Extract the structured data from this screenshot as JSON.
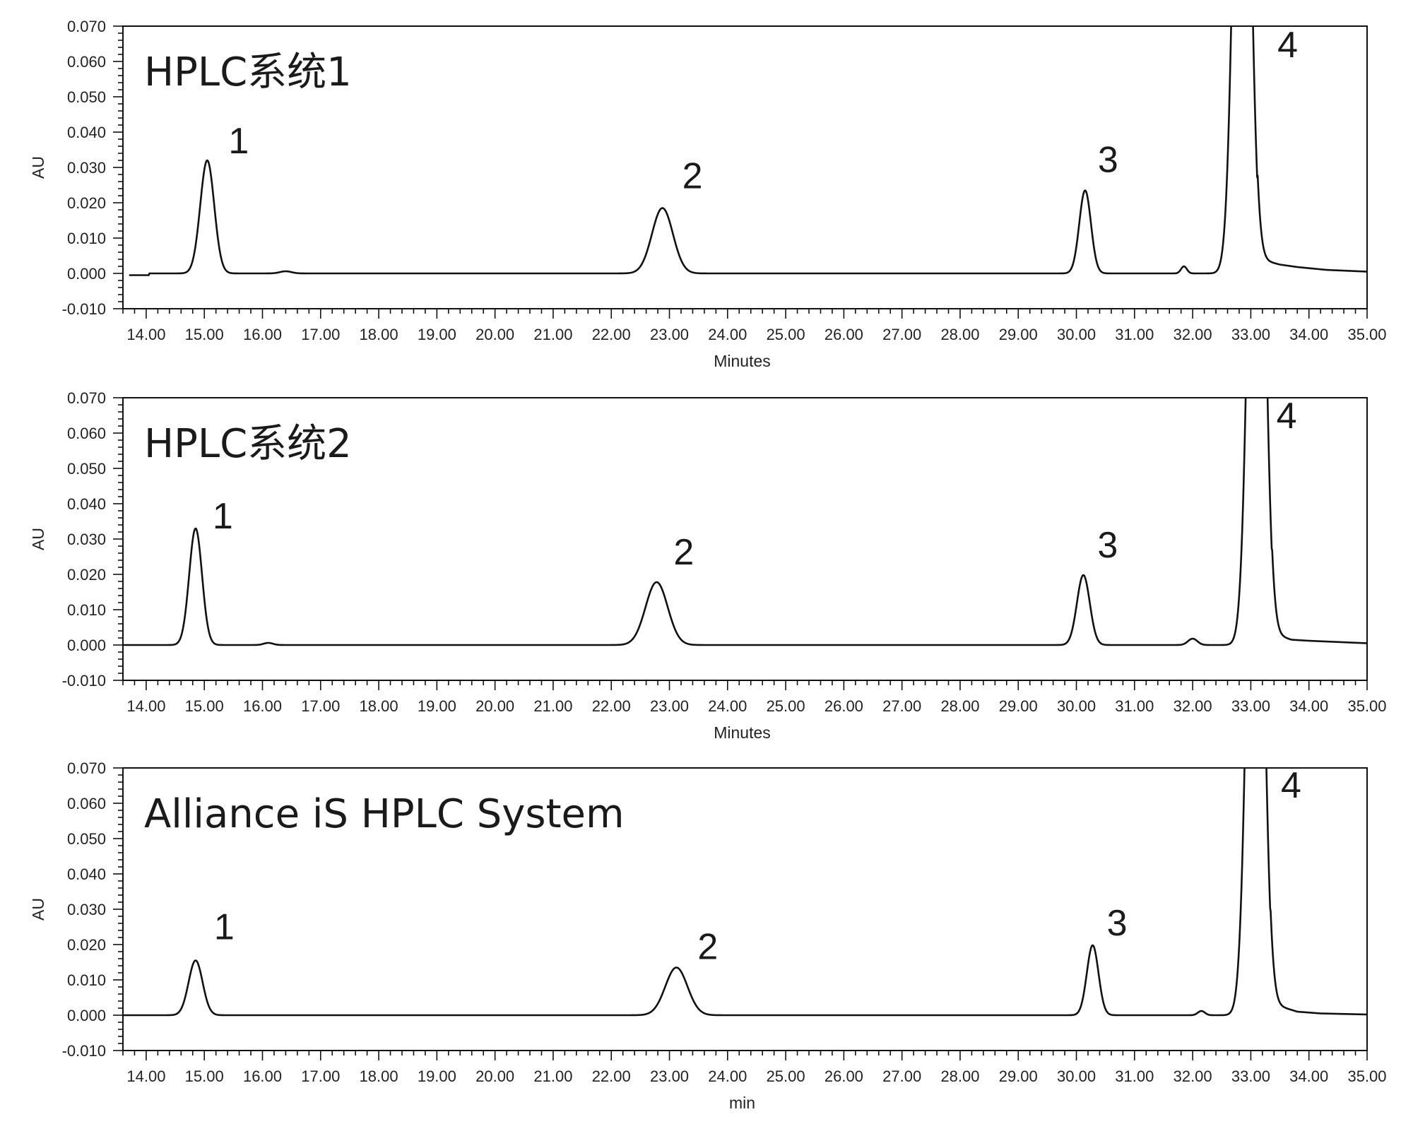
{
  "chart_data": [
    {
      "type": "line",
      "title": "HPLC系统1",
      "xlabel": "Minutes",
      "ylabel": "AU",
      "xlim": [
        13.6,
        35.0
      ],
      "ylim": [
        -0.01,
        0.07
      ],
      "xticks": [
        "14.00",
        "15.00",
        "16.00",
        "17.00",
        "18.00",
        "19.00",
        "20.00",
        "21.00",
        "22.00",
        "23.00",
        "24.00",
        "25.00",
        "26.00",
        "27.00",
        "28.00",
        "29.00",
        "30.00",
        "31.00",
        "32.00",
        "33.00",
        "34.00",
        "35.00"
      ],
      "yticks": [
        "-0.010",
        "0.000",
        "0.010",
        "0.020",
        "0.030",
        "0.040",
        "0.050",
        "0.060",
        "0.070"
      ],
      "grid": false,
      "baseline": 0.0,
      "pre_offset": -0.0005,
      "peaks": [
        {
          "label": "1",
          "rt": 15.05,
          "height": 0.032,
          "width": 0.12
        },
        {
          "rt": 16.4,
          "height": 0.0006,
          "width": 0.1
        },
        {
          "label": "2",
          "rt": 22.88,
          "height": 0.0185,
          "width": 0.18
        },
        {
          "label": "3",
          "rt": 30.15,
          "height": 0.0235,
          "width": 0.1
        },
        {
          "rt": 31.85,
          "height": 0.002,
          "width": 0.05
        },
        {
          "label": "4",
          "rt": 32.85,
          "height": 0.2,
          "width": 0.13
        }
      ],
      "tail": [
        {
          "x": 33.15,
          "y": 0.004
        },
        {
          "x": 33.5,
          "y": 0.0025
        },
        {
          "x": 33.8,
          "y": 0.0018
        },
        {
          "x": 34.3,
          "y": 0.001
        },
        {
          "x": 35.0,
          "y": 0.0005
        }
      ]
    },
    {
      "type": "line",
      "title": "HPLC系统2",
      "xlabel": "Minutes",
      "ylabel": "AU",
      "xlim": [
        13.6,
        35.0
      ],
      "ylim": [
        -0.01,
        0.07
      ],
      "xticks": [
        "14.00",
        "15.00",
        "16.00",
        "17.00",
        "18.00",
        "19.00",
        "20.00",
        "21.00",
        "22.00",
        "23.00",
        "24.00",
        "25.00",
        "26.00",
        "27.00",
        "28.00",
        "29.00",
        "30.00",
        "31.00",
        "32.00",
        "33.00",
        "34.00",
        "35.00"
      ],
      "yticks": [
        "-0.010",
        "0.000",
        "0.010",
        "0.020",
        "0.030",
        "0.040",
        "0.050",
        "0.060",
        "0.070"
      ],
      "grid": false,
      "baseline": 0.0,
      "pre_offset": 0.0,
      "peaks": [
        {
          "label": "1",
          "rt": 14.85,
          "height": 0.033,
          "width": 0.11
        },
        {
          "rt": 16.1,
          "height": 0.0006,
          "width": 0.08
        },
        {
          "label": "2",
          "rt": 22.78,
          "height": 0.0178,
          "width": 0.19
        },
        {
          "label": "3",
          "rt": 30.12,
          "height": 0.0198,
          "width": 0.11
        },
        {
          "rt": 32.0,
          "height": 0.0018,
          "width": 0.08
        },
        {
          "label": "4",
          "rt": 33.1,
          "height": 0.2,
          "width": 0.13
        }
      ],
      "tail": [
        {
          "x": 33.4,
          "y": 0.003
        },
        {
          "x": 33.7,
          "y": 0.0015
        },
        {
          "x": 34.0,
          "y": 0.0012
        },
        {
          "x": 35.0,
          "y": 0.0005
        }
      ]
    },
    {
      "type": "line",
      "title": "Alliance iS HPLC System",
      "xlabel": "min",
      "ylabel": "AU",
      "xlim": [
        13.6,
        35.0
      ],
      "ylim": [
        -0.01,
        0.07
      ],
      "xticks": [
        "14.00",
        "15.00",
        "16.00",
        "17.00",
        "18.00",
        "19.00",
        "20.00",
        "21.00",
        "22.00",
        "23.00",
        "24.00",
        "25.00",
        "26.00",
        "27.00",
        "28.00",
        "29.00",
        "30.00",
        "31.00",
        "32.00",
        "33.00",
        "34.00",
        "35.00"
      ],
      "yticks": [
        "-0.010",
        "0.000",
        "0.010",
        "0.020",
        "0.030",
        "0.040",
        "0.050",
        "0.060",
        "0.070"
      ],
      "grid": false,
      "baseline": 0.0,
      "pre_offset": 0.0,
      "peaks": [
        {
          "label": "1",
          "rt": 14.85,
          "height": 0.0155,
          "width": 0.12
        },
        {
          "label": "2",
          "rt": 23.12,
          "height": 0.0135,
          "width": 0.19
        },
        {
          "label": "3",
          "rt": 30.28,
          "height": 0.0198,
          "width": 0.1
        },
        {
          "rt": 32.15,
          "height": 0.0012,
          "width": 0.06
        },
        {
          "label": "4",
          "rt": 33.08,
          "height": 0.2,
          "width": 0.13
        }
      ],
      "tail": [
        {
          "x": 33.4,
          "y": 0.003
        },
        {
          "x": 33.8,
          "y": 0.001
        },
        {
          "x": 34.2,
          "y": 0.0005
        },
        {
          "x": 35.0,
          "y": 0.0002
        }
      ]
    }
  ]
}
